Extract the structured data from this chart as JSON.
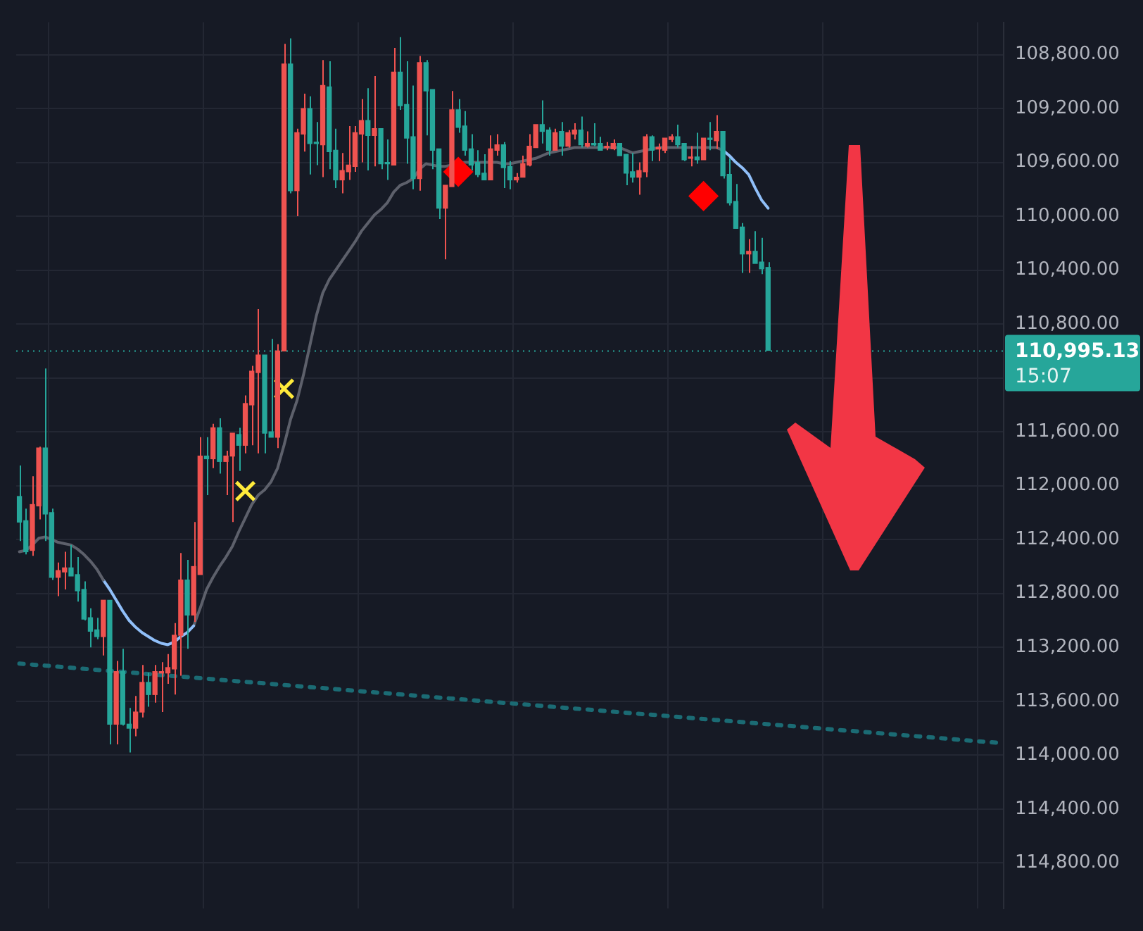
{
  "chart_data": {
    "type": "candlestick",
    "categories": [
      null,
      null,
      null,
      null,
      null,
      null,
      null,
      null,
      null,
      null,
      null,
      null,
      null,
      null,
      null,
      null,
      null,
      null,
      null,
      null,
      null,
      null,
      null,
      null,
      null,
      null,
      null,
      null,
      null,
      null,
      null,
      null,
      null,
      null,
      null,
      null,
      null,
      null,
      null,
      null,
      null,
      null,
      null,
      null,
      null,
      null,
      null,
      null,
      null,
      null,
      null,
      null,
      null,
      null,
      null,
      null,
      null,
      null,
      null,
      null,
      null,
      null,
      null,
      null,
      null,
      null,
      null,
      null,
      null,
      null,
      null,
      null,
      null,
      null,
      null,
      null,
      null,
      null,
      null,
      null,
      null,
      null,
      null,
      null,
      null,
      null,
      null,
      null,
      null,
      null,
      null,
      null,
      null,
      null,
      null,
      null,
      null,
      null,
      null,
      null,
      null,
      null,
      null,
      null,
      null,
      null,
      null,
      null,
      null,
      null,
      null,
      null,
      null,
      null,
      null,
      null,
      null,
      null,
      null,
      null,
      null,
      null,
      null,
      null,
      null,
      null,
      null,
      null,
      null,
      null,
      null,
      null,
      null,
      null,
      null,
      null,
      null,
      null,
      null,
      null,
      null,
      null,
      null,
      null,
      null,
      null,
      null,
      null,
      null,
      null,
      null,
      null,
      null
    ],
    "ohlc": [
      [
        112080,
        112410,
        111850,
        112270
      ],
      [
        112260,
        112510,
        112170,
        112490
      ],
      [
        112480,
        112520,
        111930,
        112140
      ],
      [
        112150,
        112250,
        111710,
        111720
      ],
      [
        111720,
        112410,
        111130,
        112210
      ],
      [
        112200,
        112700,
        112170,
        112680
      ],
      [
        112680,
        112820,
        112570,
        112630
      ],
      [
        112640,
        112770,
        112490,
        112610
      ],
      [
        112610,
        112670,
        112440,
        112670
      ],
      [
        112660,
        112860,
        112530,
        112780
      ],
      [
        112770,
        113000,
        112710,
        112990
      ],
      [
        112980,
        113200,
        112910,
        113080
      ],
      [
        113070,
        113140,
        112980,
        113120
      ],
      [
        113120,
        113260,
        112850,
        112850
      ],
      [
        112850,
        113920,
        112850,
        113770
      ],
      [
        113770,
        113920,
        113300,
        113380
      ],
      [
        113380,
        113780,
        113210,
        113770
      ],
      [
        113770,
        113980,
        113650,
        113800
      ],
      [
        113800,
        113860,
        113560,
        113680
      ],
      [
        113680,
        113720,
        113330,
        113460
      ],
      [
        113460,
        113640,
        113390,
        113550
      ],
      [
        113550,
        113610,
        113330,
        113380
      ],
      [
        113390,
        113680,
        113310,
        113380
      ],
      [
        113390,
        113470,
        113250,
        113350
      ],
      [
        113360,
        113550,
        113020,
        113110
      ],
      [
        113110,
        113410,
        112500,
        112700
      ],
      [
        112700,
        113210,
        112550,
        112960
      ],
      [
        112960,
        113010,
        112270,
        112600
      ],
      [
        112660,
        112660,
        111640,
        111780
      ],
      [
        111780,
        112070,
        111640,
        111800
      ],
      [
        111800,
        111870,
        111540,
        111570
      ],
      [
        111570,
        111910,
        111500,
        111820
      ],
      [
        111820,
        112070,
        111740,
        111780
      ],
      [
        111780,
        112270,
        111610,
        111610
      ],
      [
        111620,
        111890,
        111570,
        111700
      ],
      [
        111700,
        111760,
        111330,
        111390
      ],
      [
        111400,
        111700,
        111110,
        111150
      ],
      [
        111160,
        111760,
        110690,
        111030
      ],
      [
        111030,
        111760,
        111030,
        111610
      ],
      [
        111600,
        111640,
        110910,
        111640
      ],
      [
        111640,
        111720,
        110950,
        111000
      ],
      [
        111000,
        111000,
        108720,
        108870
      ],
      [
        108870,
        109830,
        108680,
        109810
      ],
      [
        109810,
        110000,
        109350,
        109380
      ],
      [
        109390,
        109520,
        109090,
        109200
      ],
      [
        109200,
        109690,
        109110,
        109460
      ],
      [
        109450,
        109620,
        109300,
        109460
      ],
      [
        109470,
        109710,
        108840,
        109030
      ],
      [
        109040,
        109650,
        108850,
        109520
      ],
      [
        109510,
        109790,
        109350,
        109730
      ],
      [
        109730,
        109830,
        109530,
        109660
      ],
      [
        109670,
        109730,
        109330,
        109620
      ],
      [
        109630,
        109670,
        109330,
        109380
      ],
      [
        109390,
        109600,
        109130,
        109290
      ],
      [
        109290,
        109660,
        109050,
        109400
      ],
      [
        109400,
        109630,
        108960,
        109350
      ],
      [
        109350,
        109650,
        109350,
        109610
      ],
      [
        109600,
        109730,
        109430,
        109610
      ],
      [
        109620,
        109620,
        108750,
        108930
      ],
      [
        108930,
        109210,
        108670,
        109180
      ],
      [
        109170,
        109610,
        108850,
        109420
      ],
      [
        109410,
        109800,
        109030,
        109720
      ],
      [
        109720,
        109810,
        108810,
        108860
      ],
      [
        108860,
        109400,
        108840,
        109070
      ],
      [
        109060,
        109650,
        109060,
        109510
      ],
      [
        109500,
        110020,
        109500,
        109940
      ],
      [
        109940,
        110320,
        109770,
        109770
      ],
      [
        109780,
        109780,
        109070,
        109210
      ],
      [
        109210,
        109380,
        109130,
        109340
      ],
      [
        109330,
        109550,
        109220,
        109510
      ],
      [
        109500,
        109660,
        109390,
        109620
      ],
      [
        109600,
        109710,
        109510,
        109690
      ],
      [
        109680,
        109730,
        109540,
        109730
      ],
      [
        109730,
        109730,
        109400,
        109500
      ],
      [
        109510,
        109550,
        109390,
        109470
      ],
      [
        109470,
        109790,
        109450,
        109640
      ],
      [
        109630,
        109800,
        109590,
        109730
      ],
      [
        109730,
        109750,
        109680,
        109710
      ],
      [
        109710,
        109710,
        109550,
        109610
      ],
      [
        109620,
        109630,
        109390,
        109480
      ],
      [
        109490,
        109490,
        109320,
        109320
      ],
      [
        109320,
        109460,
        109140,
        109370
      ],
      [
        109360,
        109550,
        109340,
        109510
      ],
      [
        109510,
        109510,
        109350,
        109380
      ],
      [
        109370,
        109550,
        109300,
        109480
      ],
      [
        109480,
        109490,
        109360,
        109380
      ],
      [
        109390,
        109430,
        109310,
        109360
      ],
      [
        109360,
        109490,
        109260,
        109470
      ],
      [
        109480,
        109490,
        109370,
        109460
      ],
      [
        109460,
        109480,
        109310,
        109470
      ],
      [
        109460,
        109510,
        109410,
        109510
      ],
      [
        109490,
        109510,
        109450,
        109480
      ],
      [
        109500,
        109510,
        109430,
        109460
      ],
      [
        109460,
        109550,
        109460,
        109550
      ],
      [
        109540,
        109770,
        109540,
        109680
      ],
      [
        109670,
        109750,
        109530,
        109710
      ],
      [
        109710,
        109840,
        109600,
        109660
      ],
      [
        109670,
        109710,
        109390,
        109410
      ],
      [
        109410,
        109590,
        109400,
        109510
      ],
      [
        109500,
        109590,
        109460,
        109490
      ],
      [
        109510,
        109530,
        109420,
        109420
      ],
      [
        109430,
        109450,
        109390,
        109410
      ],
      [
        109410,
        109490,
        109320,
        109470
      ],
      [
        109460,
        109590,
        109460,
        109580
      ],
      [
        109570,
        109630,
        109480,
        109560
      ],
      [
        109560,
        109610,
        109380,
        109580
      ],
      [
        109580,
        109580,
        109420,
        109420
      ],
      [
        109420,
        109510,
        109300,
        109430
      ],
      [
        109440,
        109500,
        109250,
        109370
      ],
      [
        109370,
        109720,
        109370,
        109700
      ],
      [
        109690,
        109920,
        109570,
        109900
      ],
      [
        109890,
        110090,
        109760,
        110090
      ],
      [
        110080,
        110420,
        110050,
        110280
      ],
      [
        110280,
        110420,
        110170,
        110260
      ],
      [
        110260,
        110350,
        110110,
        110350
      ],
      [
        110340,
        110430,
        110160,
        110390
      ],
      [
        110380,
        110995.13,
        110340,
        110995.13
      ],
      null,
      null,
      null,
      null,
      null,
      null,
      null,
      null,
      null,
      null,
      null,
      null,
      null,
      null,
      null,
      null,
      null,
      null,
      null,
      null,
      null,
      null,
      null,
      null,
      null,
      null,
      null,
      null,
      null,
      null,
      null,
      null,
      null,
      null,
      null,
      null
    ],
    "colors": [
      "#26a69a",
      "#26a69a",
      "#ef5350",
      "#ef5350",
      "#26a69a",
      "#26a69a",
      "#ef5350",
      "#ef5350",
      "#26a69a",
      "#26a69a",
      "#26a69a",
      "#26a69a",
      "#26a69a",
      "#ef5350",
      "#26a69a",
      "#ef5350",
      "#26a69a",
      "#26a69a",
      "#ef5350",
      "#ef5350",
      "#26a69a",
      "#ef5350",
      "#ef5350",
      "#ef5350",
      "#ef5350",
      "#ef5350",
      "#26a69a",
      "#ef5350",
      "#ef5350",
      "#26a69a",
      "#ef5350",
      "#26a69a",
      "#ef5350",
      "#ef5350",
      "#26a69a",
      "#ef5350",
      "#ef5350",
      "#ef5350",
      "#26a69a",
      "#26a69a",
      "#ef5350",
      "#ef5350",
      "#26a69a",
      "#ef5350",
      "#ef5350",
      "#26a69a",
      "#26a69a",
      "#ef5350",
      "#26a69a",
      "#26a69a",
      "#ef5350",
      "#ef5350",
      "#ef5350",
      "#ef5350",
      "#26a69a",
      "#ef5350",
      "#26a69a",
      "#26a69a",
      "#ef5350",
      "#26a69a",
      "#26a69a",
      "#26a69a",
      "#ef5350",
      "#26a69a",
      "#26a69a",
      "#26a69a",
      "#ef5350",
      "#ef5350",
      "#26a69a",
      "#26a69a",
      "#26a69a",
      "#26a69a",
      "#26a69a",
      "#ef5350",
      "#ef5350",
      "#26a69a",
      "#26a69a",
      "#ef5350",
      "#ef5350",
      "#ef5350",
      "#ef5350",
      "#26a69a",
      "#26a69a",
      "#ef5350",
      "#26a69a",
      "#ef5350",
      "#ef5350",
      "#26a69a",
      "#ef5350",
      "#26a69a",
      "#26a69a",
      "#ef5350",
      "#ef5350",
      "#26a69a",
      "#26a69a",
      "#26a69a",
      "#ef5350",
      "#ef5350",
      "#26a69a",
      "#ef5350",
      "#ef5350",
      "#ef5350",
      "#26a69a",
      "#26a69a",
      "#ef5350",
      "#26a69a",
      "#ef5350",
      "#26a69a",
      "#ef5350",
      "#26a69a",
      "#26a69a",
      "#26a69a",
      "#26a69a",
      "#ef5350",
      "#26a69a",
      "#26a69a",
      "#26a69a",
      null,
      null,
      null,
      null,
      null,
      null,
      null,
      null,
      null,
      null,
      null,
      null,
      null,
      null,
      null,
      null,
      null,
      null,
      null,
      null,
      null,
      null,
      null,
      null,
      null,
      null,
      null,
      null,
      null,
      null,
      null,
      null,
      null,
      null,
      null,
      null
    ],
    "series": [
      {
        "type": "line",
        "color": "#5d606b",
        "values": [
          112490,
          112480,
          112440,
          112390,
          112380,
          112400,
          112420,
          112430,
          112440,
          112470,
          112510,
          112560,
          112620,
          112700,
          null,
          null,
          null,
          null,
          null,
          null,
          null,
          null,
          null,
          null,
          null,
          null,
          null,
          null,
          null,
          null,
          null,
          null,
          null,
          null,
          null,
          null,
          null,
          null,
          null,
          null,
          null,
          null,
          null,
          null,
          null,
          null,
          null,
          null,
          null,
          null,
          null,
          null,
          null,
          null,
          null,
          null,
          null,
          null,
          null,
          null,
          null,
          null,
          null,
          null,
          null,
          null,
          null,
          null,
          null,
          null,
          null,
          null,
          null,
          null,
          null,
          null,
          null,
          null,
          null,
          null,
          null,
          null,
          null,
          null,
          null,
          null,
          null,
          null,
          null,
          null,
          null,
          null,
          null,
          null,
          null,
          null,
          null,
          null,
          null,
          null,
          null,
          null,
          null,
          null,
          null,
          null,
          null,
          null,
          null,
          null,
          null,
          null,
          null,
          null,
          null,
          null,
          null,
          null,
          null,
          null,
          null,
          null,
          null,
          null,
          null,
          null,
          null,
          null,
          null,
          null,
          null,
          null,
          null,
          null,
          null,
          null,
          null,
          null,
          null,
          null,
          null,
          null,
          null,
          null,
          null,
          null,
          null,
          null,
          null,
          null,
          null,
          null,
          null
        ]
      },
      {
        "type": "line",
        "color": "#90bff9",
        "values": [
          null,
          null,
          null,
          null,
          null,
          null,
          null,
          null,
          null,
          null,
          null,
          null,
          null,
          112700,
          112770,
          112850,
          112930,
          113000,
          113050,
          113090,
          113120,
          113150,
          113170,
          113180,
          113160,
          113120,
          113090,
          113040,
          null,
          null,
          null,
          null,
          null,
          null,
          null,
          null,
          null,
          null,
          null,
          null,
          null,
          null,
          null,
          null,
          null,
          null,
          null,
          null,
          null,
          null,
          null,
          null,
          null,
          null,
          null,
          null,
          null,
          null,
          null,
          null,
          null,
          null,
          null,
          null,
          null,
          null,
          null,
          null,
          null,
          null,
          null,
          null,
          null,
          null,
          null,
          null,
          null,
          null,
          null,
          null,
          null,
          null,
          null,
          null,
          null,
          null,
          null,
          null,
          null,
          null,
          null,
          null,
          null,
          null,
          null,
          null,
          null,
          null,
          null,
          null,
          null,
          null,
          null,
          null,
          null,
          null,
          null,
          null,
          null,
          null,
          null,
          null,
          null,
          null,
          null,
          null,
          null,
          null,
          null,
          null,
          null,
          null,
          null,
          null,
          null,
          null,
          null,
          null,
          null,
          null,
          null,
          null,
          null,
          null,
          null,
          null,
          null,
          null,
          null,
          null,
          null,
          null,
          null,
          null,
          null,
          null,
          null,
          null,
          null,
          null,
          null,
          null,
          null
        ]
      },
      {
        "type": "line",
        "color": "#5d606b",
        "values": [
          null,
          null,
          null,
          null,
          null,
          null,
          null,
          null,
          null,
          null,
          null,
          null,
          null,
          null,
          null,
          null,
          null,
          null,
          null,
          null,
          null,
          null,
          null,
          null,
          null,
          null,
          null,
          113040,
          112910,
          112770,
          112680,
          112600,
          112530,
          112450,
          112340,
          112240,
          112140,
          112070,
          112030,
          111970,
          111870,
          111700,
          111510,
          111370,
          111180,
          110960,
          110740,
          110570,
          110470,
          110400,
          110330,
          110260,
          110190,
          110110,
          110050,
          109990,
          109950,
          109900,
          109820,
          109770,
          109750,
          109720,
          109650,
          109610,
          109620,
          109630,
          109630,
          109620,
          109610,
          109600,
          109600,
          109600,
          109600,
          109600,
          109600,
          109610,
          109610,
          109600,
          109590,
          109580,
          109570,
          109550,
          109530,
          109520,
          109510,
          109500,
          109490,
          109490,
          109490,
          109490,
          109490,
          109490,
          109490,
          109490,
          109510,
          109530,
          109520,
          109510,
          109500,
          109490,
          109490,
          109490,
          109490,
          109490,
          109490,
          109490,
          109490,
          109490,
          109490,
          109510,
          null,
          null,
          null,
          null,
          null,
          null,
          null,
          null,
          null,
          null,
          null,
          null,
          null,
          null,
          null,
          null,
          null,
          null,
          null,
          null,
          null,
          null,
          null,
          null,
          null,
          null,
          null,
          null,
          null,
          null,
          null,
          null,
          null,
          null,
          null,
          null,
          null,
          null,
          null,
          null,
          null,
          null,
          null
        ]
      },
      {
        "type": "line",
        "color": "#90bff9",
        "values": [
          null,
          null,
          null,
          null,
          null,
          null,
          null,
          null,
          null,
          null,
          null,
          null,
          null,
          null,
          null,
          null,
          null,
          null,
          null,
          null,
          null,
          null,
          null,
          null,
          null,
          null,
          null,
          null,
          null,
          null,
          null,
          null,
          null,
          null,
          null,
          null,
          null,
          null,
          null,
          null,
          null,
          null,
          null,
          null,
          null,
          null,
          null,
          null,
          null,
          null,
          null,
          null,
          null,
          null,
          null,
          null,
          null,
          null,
          null,
          null,
          null,
          null,
          null,
          null,
          null,
          null,
          null,
          null,
          null,
          null,
          null,
          null,
          null,
          null,
          null,
          null,
          null,
          null,
          null,
          null,
          null,
          null,
          null,
          null,
          null,
          null,
          null,
          null,
          null,
          null,
          null,
          null,
          null,
          null,
          null,
          null,
          null,
          null,
          null,
          null,
          null,
          null,
          null,
          null,
          null,
          null,
          null,
          null,
          null,
          109510,
          109550,
          109600,
          109640,
          109690,
          109790,
          109880,
          109940,
          null,
          null,
          null,
          null,
          null,
          null,
          null,
          null,
          null,
          null,
          null,
          null,
          null,
          null,
          null,
          null,
          null,
          null,
          null,
          null,
          null,
          null,
          null,
          null,
          null,
          null,
          null,
          null,
          null,
          null,
          null,
          null,
          null,
          null,
          null,
          null
        ]
      },
      {
        "type": "line",
        "color": "#1b6b74",
        "line_style": "dotted",
        "values": [
          113320,
          null,
          null,
          null,
          null,
          null,
          null,
          null,
          null,
          null,
          null,
          null,
          null,
          null,
          null,
          null,
          null,
          null,
          null,
          null,
          null,
          null,
          null,
          null,
          null,
          null,
          null,
          null,
          null,
          null,
          null,
          null,
          null,
          null,
          null,
          null,
          null,
          null,
          null,
          null,
          null,
          null,
          null,
          null,
          null,
          null,
          null,
          null,
          null,
          null,
          null,
          null,
          null,
          null,
          null,
          null,
          null,
          null,
          null,
          null,
          null,
          null,
          null,
          null,
          null,
          null,
          null,
          null,
          null,
          null,
          null,
          null,
          null,
          null,
          null,
          null,
          null,
          null,
          null,
          null,
          null,
          null,
          null,
          null,
          null,
          null,
          null,
          null,
          null,
          null,
          null,
          null,
          null,
          null,
          null,
          null,
          null,
          null,
          null,
          null,
          null,
          null,
          null,
          null,
          null,
          null,
          null,
          null,
          null,
          null,
          null,
          null,
          null,
          null,
          null,
          null,
          null,
          null,
          null,
          null,
          null,
          null,
          null,
          null,
          null,
          null,
          null,
          null,
          null,
          null,
          null,
          null,
          null,
          null,
          null,
          null,
          null,
          null,
          null,
          null,
          null,
          null,
          null,
          null,
          null,
          null,
          null,
          null,
          null,
          null,
          null,
          null,
          113910
        ]
      },
      {
        "type": "scatter",
        "color": "#ffeb3b",
        "marker": "cross",
        "values": [
          null,
          null,
          null,
          null,
          null,
          null,
          null,
          null,
          null,
          null,
          null,
          null,
          null,
          null,
          null,
          null,
          null,
          null,
          null,
          null,
          null,
          null,
          null,
          null,
          null,
          null,
          null,
          null,
          null,
          null,
          null,
          null,
          null,
          null,
          null,
          112040,
          null,
          null,
          null,
          null,
          null,
          111280,
          null,
          null,
          null,
          null,
          null,
          null,
          null,
          null,
          null,
          null,
          null,
          null,
          null,
          null,
          null,
          null,
          null,
          null,
          null,
          null,
          null,
          null,
          null,
          null,
          null,
          null,
          null,
          null,
          null,
          null,
          null,
          null,
          null,
          null,
          null,
          null,
          null,
          null,
          null,
          null,
          null,
          null,
          null,
          null,
          null,
          null,
          null,
          null,
          null,
          null,
          null,
          null,
          null,
          null,
          null,
          null,
          null,
          null,
          null,
          null,
          null,
          null,
          null,
          null,
          null,
          null,
          null,
          null,
          null,
          null,
          null,
          null,
          null,
          null,
          null,
          null,
          null,
          null,
          null,
          null,
          null,
          null,
          null,
          null,
          null,
          null,
          null,
          null,
          null,
          null,
          null,
          null,
          null,
          null,
          null,
          null,
          null,
          null,
          null,
          null,
          null,
          null,
          null,
          null,
          null,
          null,
          null,
          null,
          null,
          null,
          null
        ]
      },
      {
        "type": "scatter",
        "color": "#ff0000",
        "marker": "diamond",
        "values": [
          null,
          null,
          null,
          null,
          null,
          null,
          null,
          null,
          null,
          null,
          null,
          null,
          null,
          null,
          null,
          null,
          null,
          null,
          null,
          null,
          null,
          null,
          null,
          null,
          null,
          null,
          null,
          null,
          null,
          null,
          null,
          null,
          null,
          null,
          null,
          null,
          null,
          null,
          null,
          null,
          null,
          null,
          null,
          null,
          null,
          null,
          null,
          null,
          null,
          null,
          null,
          null,
          null,
          null,
          null,
          null,
          null,
          null,
          null,
          null,
          null,
          null,
          null,
          null,
          null,
          null,
          null,
          null,
          109670,
          null,
          null,
          null,
          null,
          null,
          null,
          null,
          null,
          null,
          null,
          null,
          null,
          null,
          null,
          null,
          null,
          null,
          null,
          null,
          null,
          null,
          null,
          null,
          null,
          null,
          null,
          null,
          null,
          null,
          null,
          null,
          null,
          null,
          null,
          null,
          null,
          null,
          109850,
          null,
          null,
          null,
          null,
          null,
          null,
          null,
          null,
          null,
          null,
          null,
          null,
          null,
          null,
          null,
          null,
          null,
          null,
          null,
          null,
          null,
          null,
          null,
          null,
          null,
          null,
          null,
          null,
          null,
          null,
          null,
          null,
          null,
          null,
          null,
          null,
          null,
          null,
          null,
          null,
          null,
          null,
          null,
          null,
          null,
          null
        ]
      }
    ],
    "ylim": [
      115140,
      108560
    ],
    "yticks": [
      {
        "value": 108800,
        "label": "108,800.00"
      },
      {
        "value": 109200,
        "label": "109,200.00"
      },
      {
        "value": 109600,
        "label": "109,600.00"
      },
      {
        "value": 110000,
        "label": "110,000.00"
      },
      {
        "value": 110400,
        "label": "110,400.00"
      },
      {
        "value": 110800,
        "label": "110,800.00"
      },
      {
        "value": 111200,
        "label": null
      },
      {
        "value": 111600,
        "label": "111,600.00"
      },
      {
        "value": 112000,
        "label": "112,000.00"
      },
      {
        "value": 112400,
        "label": "112,400.00"
      },
      {
        "value": 112800,
        "label": "112,800.00"
      },
      {
        "value": 113200,
        "label": "113,200.00"
      },
      {
        "value": 113600,
        "label": "113,600.00"
      },
      {
        "value": 114000,
        "label": "114,000.00"
      },
      {
        "value": 114400,
        "label": "114,400.00"
      },
      {
        "value": 114800,
        "label": "114,800.00"
      }
    ],
    "grid": true,
    "tick_labels": "y",
    "ref_lines": [
      {
        "axis": "y",
        "value": 110995.13,
        "label": "110,995.13",
        "color": "#26a69a",
        "line_style": "dotted"
      }
    ],
    "annotations": [
      "15:07"
    ]
  }
}
